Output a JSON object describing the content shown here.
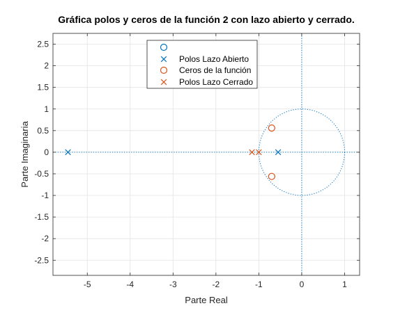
{
  "chart_data": {
    "type": "scatter",
    "title": "Gráfica polos y ceros de la función 2 con lazo abierto y cerrado.",
    "xlabel": "Parte Real",
    "ylabel": "Parte Imaginaria",
    "xlim": [
      -5.8,
      1.35
    ],
    "ylim": [
      -2.85,
      2.75
    ],
    "xticks": [
      -5,
      -4,
      -3,
      -2,
      -1,
      0,
      1
    ],
    "yticks": [
      -2.5,
      -2,
      -1.5,
      -1,
      -0.5,
      0,
      0.5,
      1,
      1.5,
      2,
      2.5
    ],
    "grid": true,
    "legend_position": "top-center",
    "unit_circle": true,
    "series": [
      {
        "name": "",
        "marker": "o",
        "color": "#0072BD",
        "points": []
      },
      {
        "name": "Polos Lazo Abierto",
        "marker": "x",
        "color": "#0072BD",
        "points": [
          [
            -5.45,
            0
          ],
          [
            -0.55,
            0
          ]
        ]
      },
      {
        "name": "Ceros de la función",
        "marker": "o",
        "color": "#D95319",
        "points": [
          [
            -0.7,
            0.56
          ],
          [
            -0.7,
            -0.56
          ]
        ]
      },
      {
        "name": "Polos Lazo Cerrado",
        "marker": "x",
        "color": "#D95319",
        "points": [
          [
            -1.16,
            0
          ],
          [
            -1.0,
            0
          ]
        ]
      }
    ]
  }
}
